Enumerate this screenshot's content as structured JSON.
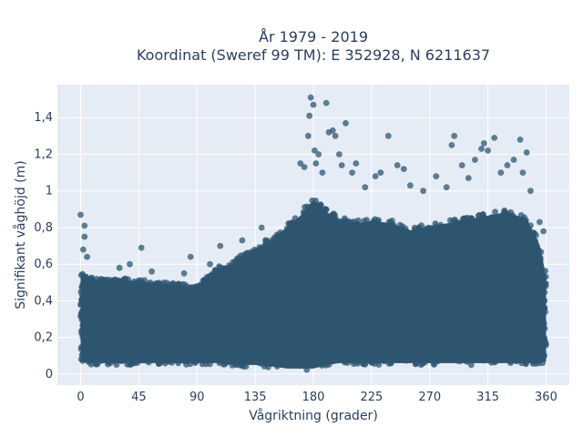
{
  "chart_data": {
    "type": "scatter",
    "title_line1": "År 1979 - 2019",
    "title_line2": "Koordinat (Sweref 99 TM): E 352928, N 6211637",
    "xlabel": "Vågriktning (grader)",
    "ylabel": "Signifikant våghöjd (m)",
    "xlim": [
      -18,
      378
    ],
    "ylim": [
      -0.06,
      1.58
    ],
    "xticks": [
      0,
      45,
      90,
      135,
      180,
      225,
      270,
      315,
      360
    ],
    "xtick_labels": [
      "0",
      "45",
      "90",
      "135",
      "180",
      "225",
      "270",
      "315",
      "360"
    ],
    "yticks": [
      0,
      0.2,
      0.4,
      0.6,
      0.8,
      1.0,
      1.2,
      1.4
    ],
    "ytick_labels": [
      "0",
      "0,2",
      "0,4",
      "0,6",
      "0,8",
      "1",
      "1,2",
      "1,4"
    ],
    "grid": true,
    "marker_color": "#2f5570",
    "plot_bg": "#e5ecf6",
    "envelope_x": [
      0,
      5,
      10,
      20,
      30,
      45,
      60,
      75,
      90,
      105,
      120,
      135,
      150,
      160,
      170,
      175,
      180,
      185,
      190,
      200,
      215,
      225,
      240,
      255,
      270,
      285,
      300,
      315,
      330,
      345,
      355,
      360
    ],
    "envelope_upper": [
      0.55,
      0.56,
      0.52,
      0.52,
      0.53,
      0.52,
      0.5,
      0.5,
      0.48,
      0.58,
      0.63,
      0.7,
      0.76,
      0.82,
      0.88,
      0.93,
      0.96,
      0.93,
      0.9,
      0.86,
      0.84,
      0.85,
      0.84,
      0.8,
      0.82,
      0.84,
      0.86,
      0.88,
      0.9,
      0.86,
      0.72,
      0.55
    ],
    "envelope_lower": [
      0.06,
      0.05,
      0.05,
      0.05,
      0.05,
      0.05,
      0.05,
      0.05,
      0.05,
      0.05,
      0.04,
      0.04,
      0.03,
      0.02,
      0.02,
      0.02,
      0.02,
      0.03,
      0.04,
      0.05,
      0.05,
      0.05,
      0.05,
      0.05,
      0.05,
      0.05,
      0.05,
      0.05,
      0.05,
      0.05,
      0.05,
      0.06
    ],
    "outliers": [
      {
        "x": 0,
        "y": 0.87
      },
      {
        "x": 3,
        "y": 0.81
      },
      {
        "x": 3,
        "y": 0.75
      },
      {
        "x": 2,
        "y": 0.68
      },
      {
        "x": 5,
        "y": 0.64
      },
      {
        "x": 47,
        "y": 0.69
      },
      {
        "x": 38,
        "y": 0.6
      },
      {
        "x": 30,
        "y": 0.58
      },
      {
        "x": 55,
        "y": 0.56
      },
      {
        "x": 85,
        "y": 0.64
      },
      {
        "x": 80,
        "y": 0.55
      },
      {
        "x": 100,
        "y": 0.6
      },
      {
        "x": 108,
        "y": 0.7
      },
      {
        "x": 125,
        "y": 0.73
      },
      {
        "x": 140,
        "y": 0.8
      },
      {
        "x": 170,
        "y": 1.15
      },
      {
        "x": 173,
        "y": 1.13
      },
      {
        "x": 176,
        "y": 1.3
      },
      {
        "x": 177,
        "y": 1.41
      },
      {
        "x": 178,
        "y": 1.51
      },
      {
        "x": 180,
        "y": 1.47
      },
      {
        "x": 181,
        "y": 1.22
      },
      {
        "x": 182,
        "y": 1.15
      },
      {
        "x": 184,
        "y": 1.2
      },
      {
        "x": 187,
        "y": 1.1
      },
      {
        "x": 190,
        "y": 1.48
      },
      {
        "x": 192,
        "y": 1.32
      },
      {
        "x": 195,
        "y": 1.33
      },
      {
        "x": 197,
        "y": 1.3
      },
      {
        "x": 200,
        "y": 1.2
      },
      {
        "x": 202,
        "y": 1.14
      },
      {
        "x": 205,
        "y": 1.37
      },
      {
        "x": 210,
        "y": 1.1
      },
      {
        "x": 213,
        "y": 1.15
      },
      {
        "x": 220,
        "y": 1.02
      },
      {
        "x": 228,
        "y": 1.08
      },
      {
        "x": 232,
        "y": 1.1
      },
      {
        "x": 238,
        "y": 1.3
      },
      {
        "x": 245,
        "y": 1.14
      },
      {
        "x": 250,
        "y": 1.12
      },
      {
        "x": 255,
        "y": 1.03
      },
      {
        "x": 265,
        "y": 1.0
      },
      {
        "x": 275,
        "y": 1.08
      },
      {
        "x": 283,
        "y": 1.02
      },
      {
        "x": 287,
        "y": 1.25
      },
      {
        "x": 289,
        "y": 1.3
      },
      {
        "x": 295,
        "y": 1.14
      },
      {
        "x": 300,
        "y": 1.07
      },
      {
        "x": 305,
        "y": 1.17
      },
      {
        "x": 310,
        "y": 1.23
      },
      {
        "x": 312,
        "y": 1.26
      },
      {
        "x": 315,
        "y": 1.22
      },
      {
        "x": 320,
        "y": 1.29
      },
      {
        "x": 325,
        "y": 1.1
      },
      {
        "x": 330,
        "y": 1.14
      },
      {
        "x": 335,
        "y": 1.17
      },
      {
        "x": 340,
        "y": 1.28
      },
      {
        "x": 342,
        "y": 1.1
      },
      {
        "x": 345,
        "y": 1.21
      },
      {
        "x": 348,
        "y": 1.0
      },
      {
        "x": 355,
        "y": 0.83
      },
      {
        "x": 358,
        "y": 0.78
      }
    ]
  }
}
